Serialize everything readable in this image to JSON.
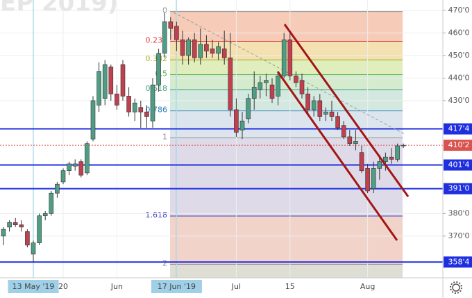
{
  "chart_data": {
    "type": "candlestick",
    "watermark": "EP 2019)",
    "categories": [
      null,
      null,
      null,
      null,
      null,
      "13 May '19",
      null,
      null,
      null,
      null,
      "20",
      null,
      null,
      null,
      null,
      null,
      null,
      null,
      null,
      "Jun",
      null,
      null,
      null,
      null,
      null,
      null,
      null,
      null,
      null,
      "17 Jun '19",
      null,
      null,
      null,
      null,
      null,
      null,
      null,
      null,
      null,
      "Jul",
      null,
      null,
      null,
      null,
      null,
      null,
      null,
      null,
      "15",
      null,
      null,
      null,
      null,
      null,
      null,
      null,
      null,
      null,
      null,
      null,
      null,
      "Aug",
      null,
      null,
      null,
      null,
      null,
      null
    ],
    "highlighted_categories": [
      5,
      29
    ],
    "open": [
      370,
      374,
      376,
      375,
      372,
      362,
      367,
      379,
      380,
      389,
      394,
      399,
      401,
      403,
      398,
      413,
      428,
      431,
      445,
      433,
      446,
      432,
      425,
      427,
      425,
      421,
      437,
      451,
      465,
      463,
      457,
      450,
      457,
      449,
      455,
      453,
      451,
      453,
      449,
      426,
      417,
      422,
      431,
      435,
      438,
      437,
      432,
      441,
      457,
      441,
      439,
      433,
      426,
      430,
      424,
      425,
      423,
      419,
      414,
      411,
      407,
      400,
      391,
      400,
      403,
      405,
      404,
      410
    ],
    "high": [
      374,
      377,
      378,
      377,
      373,
      368,
      380,
      381,
      390,
      394,
      400,
      403,
      404,
      404,
      412,
      432,
      447,
      448,
      446,
      437,
      448,
      436,
      431,
      430,
      428,
      440,
      453,
      469,
      467,
      465,
      461,
      458,
      460,
      462,
      459,
      457,
      456,
      461,
      460,
      431,
      425,
      433,
      443,
      441,
      442,
      440,
      443,
      460,
      460,
      443,
      442,
      436,
      432,
      433,
      427,
      430,
      425,
      421,
      417,
      417,
      410,
      402,
      403,
      406,
      407,
      409,
      411,
      411
    ],
    "low": [
      366,
      372,
      374,
      372,
      365,
      358.5,
      366,
      377,
      379,
      387,
      393,
      397,
      399,
      396,
      397,
      412,
      425,
      428,
      430,
      426,
      430,
      423,
      421,
      418,
      418,
      418,
      434,
      449,
      457,
      452,
      446,
      446,
      447,
      446,
      449,
      449,
      448,
      446,
      423,
      414,
      413,
      420,
      426,
      431,
      432,
      429,
      428,
      440,
      439,
      436,
      431,
      424,
      423,
      421,
      421,
      421,
      417,
      413,
      410,
      408,
      398,
      389,
      389,
      395,
      399,
      402,
      403,
      409
    ],
    "close": [
      373,
      376,
      375,
      374,
      366,
      367,
      379,
      380,
      389,
      393,
      399,
      402,
      402,
      397,
      411,
      430,
      443,
      446,
      433,
      428,
      432,
      425,
      429,
      425,
      423,
      437,
      451,
      465,
      462,
      457,
      450,
      457,
      449,
      455,
      452,
      451,
      454,
      449,
      426,
      416,
      421,
      431,
      436,
      438,
      439,
      431,
      441,
      457,
      441,
      438,
      433,
      426,
      430,
      423,
      425,
      423,
      418,
      414,
      411,
      412,
      399,
      390,
      400,
      403,
      405,
      404,
      410,
      410.25
    ],
    "up_color": "#4f9d84",
    "down_color": "#c0404f",
    "ylim": [
      351.5,
      474.6
    ],
    "yticks": [
      {
        "value": 470,
        "label": "470'0"
      },
      {
        "value": 460,
        "label": "460'0"
      },
      {
        "value": 450,
        "label": "450'0"
      },
      {
        "value": 440,
        "label": "440'0"
      },
      {
        "value": 430,
        "label": "430'0"
      },
      {
        "value": 380,
        "label": "380'0"
      },
      {
        "value": 370,
        "label": "370'0"
      }
    ],
    "grid": true,
    "levels": [
      {
        "value": 417.5,
        "label": "417'4",
        "color": "#1f2fe0",
        "style": "solid"
      },
      {
        "value": 410.25,
        "label": "410'2",
        "color": "#d9534f",
        "style": "dotted"
      },
      {
        "value": 401.5,
        "label": "401'4",
        "color": "#1f2fe0",
        "style": "solid"
      },
      {
        "value": 391,
        "label": "391'0",
        "color": "#1f2fe0",
        "style": "solid"
      },
      {
        "value": 358.5,
        "label": "358'4",
        "color": "#1f2fe0",
        "style": "solid"
      }
    ],
    "fib": {
      "start": 469.5,
      "end": 413.5,
      "levels": [
        {
          "level": 0,
          "color": "#909090",
          "fill": "#f4c3ad"
        },
        {
          "level": 0.236,
          "color": "#e04040",
          "fill": "#f2dca4"
        },
        {
          "level": 0.382,
          "color": "#a8b020",
          "fill": "#dbeab0"
        },
        {
          "level": 0.5,
          "color": "#4caf50",
          "fill": "#cde8c4"
        },
        {
          "level": 0.618,
          "color": "#40a080",
          "fill": "#cbe5da"
        },
        {
          "level": 0.786,
          "color": "#3080c0",
          "fill": "#d6dfea"
        },
        {
          "level": 1,
          "color": "#909090",
          "fill": "#d8d4e4"
        },
        {
          "level": 1.618,
          "color": "#4040c0",
          "fill": "#efcbbf"
        },
        {
          "level": 2,
          "color": "#909090",
          "fill": "#d8d8cc"
        }
      ]
    }
  }
}
